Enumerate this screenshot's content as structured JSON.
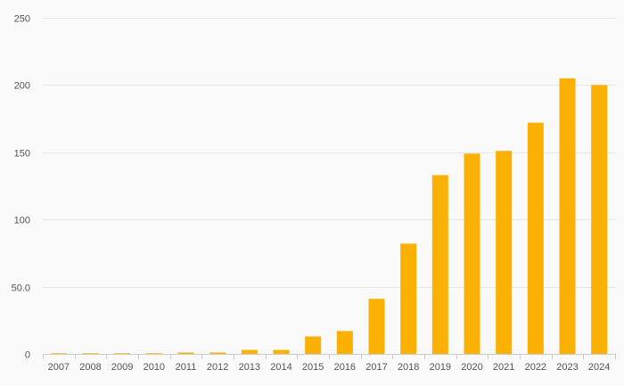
{
  "colors": {
    "background": "#f9f9f9",
    "bar": "#fbb104",
    "grid": "#e6e6e6",
    "axis": "#cccccc",
    "text": "#555555"
  },
  "chart_data": {
    "type": "bar",
    "title": "",
    "xlabel": "",
    "ylabel": "",
    "categories": [
      "2007",
      "2008",
      "2009",
      "2010",
      "2011",
      "2012",
      "2013",
      "2014",
      "2015",
      "2016",
      "2017",
      "2018",
      "2019",
      "2020",
      "2021",
      "2022",
      "2023",
      "2024"
    ],
    "values": [
      0.5,
      0.5,
      0.5,
      0.5,
      1,
      1,
      3,
      3,
      13,
      17,
      41,
      82,
      133,
      149,
      151,
      172,
      205,
      200
    ],
    "ylim": [
      0,
      250
    ],
    "yticks": [
      0,
      50,
      100,
      150,
      200,
      250
    ],
    "ytick_labels": [
      "0",
      "50.0",
      "100",
      "150",
      "200",
      "250"
    ],
    "grid": true,
    "legend": "none"
  }
}
